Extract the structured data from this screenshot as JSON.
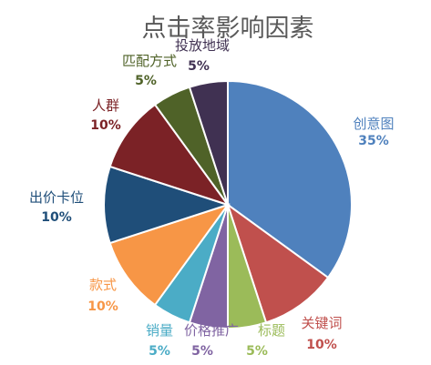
{
  "chart_data": {
    "type": "pie",
    "title": "点击率影响因素",
    "start_angle_deg": -90,
    "direction": "clockwise",
    "slices": [
      {
        "label": "创意图",
        "value": 35,
        "value_label": "35%",
        "color": "#4f81bd"
      },
      {
        "label": "关键词",
        "value": 10,
        "value_label": "10%",
        "color": "#c0504d"
      },
      {
        "label": "标题",
        "value": 5,
        "value_label": "5%",
        "color": "#9bbb59"
      },
      {
        "label": "价格推广",
        "value": 5,
        "value_label": "5%",
        "color": "#8064a2"
      },
      {
        "label": "销量",
        "value": 5,
        "value_label": "5%",
        "color": "#4bacc6"
      },
      {
        "label": "款式",
        "value": 10,
        "value_label": "10%",
        "color": "#f79646"
      },
      {
        "label": "出价卡位",
        "value": 10,
        "value_label": "10%",
        "color": "#1f4e79"
      },
      {
        "label": "人群",
        "value": 10,
        "value_label": "10%",
        "color": "#7b2226"
      },
      {
        "label": "匹配方式",
        "value": 5,
        "value_label": "5%",
        "color": "#4f6228"
      },
      {
        "label": "投放地域",
        "value": 5,
        "value_label": "5%",
        "color": "#403152"
      }
    ]
  }
}
